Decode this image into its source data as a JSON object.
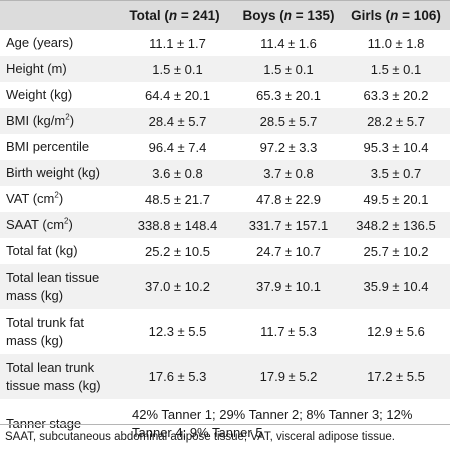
{
  "header": {
    "col0": "",
    "total_label": "Total (",
    "n": "n",
    "total_count": " = 241)",
    "boys_label": "Boys (",
    "boys_count": " = 135)",
    "girls_label": "Girls (",
    "girls_count": " = 106)"
  },
  "rows": [
    {
      "label": "Age (years)",
      "total": "11.1 ± 1.7",
      "boys": "11.4 ± 1.6",
      "girls": "11.0 ± 1.8"
    },
    {
      "label": "Height (m)",
      "total": "1.5 ± 0.1",
      "boys": "1.5 ± 0.1",
      "girls": "1.5 ± 0.1"
    },
    {
      "label": "Weight (kg)",
      "total": "64.4 ± 20.1",
      "boys": "65.3 ± 20.1",
      "girls": "63.3 ± 20.2"
    },
    {
      "label_pre": "BMI (kg/m",
      "label_sup": "2",
      "label_post": ")",
      "total": "28.4 ± 5.7",
      "boys": "28.5 ± 5.7",
      "girls": "28.2 ± 5.7"
    },
    {
      "label": "BMI percentile",
      "total": "96.4 ± 7.4",
      "boys": "97.2 ± 3.3",
      "girls": "95.3 ± 10.4"
    },
    {
      "label": "Birth weight (kg)",
      "total": "3.6 ± 0.8",
      "boys": "3.7 ± 0.8",
      "girls": "3.5 ± 0.7"
    },
    {
      "label_pre": "VAT (cm",
      "label_sup": "2",
      "label_post": ")",
      "total": "48.5 ± 21.7",
      "boys": "47.8 ± 22.9",
      "girls": "49.5 ± 20.1"
    },
    {
      "label_pre": "SAAT (cm",
      "label_sup": "2",
      "label_post": ")",
      "total": "338.8 ± 148.4",
      "boys": "331.7 ± 157.1",
      "girls": "348.2 ± 136.5"
    },
    {
      "label": "Total fat (kg)",
      "total": "25.2 ± 10.5",
      "boys": "24.7 ± 10.7",
      "girls": "25.7 ± 10.2"
    },
    {
      "label_l1": "Total lean tissue",
      "label_l2": "mass (kg)",
      "total": "37.0 ± 10.2",
      "boys": "37.9 ± 10.1",
      "girls": "35.9 ± 10.4"
    },
    {
      "label_l1": "Total trunk fat",
      "label_l2": "mass (kg)",
      "total": "12.3 ± 5.5",
      "boys": "11.7 ± 5.3",
      "girls": "12.9 ± 5.6"
    },
    {
      "label_l1": "Total lean trunk",
      "label_l2": "tissue mass (kg)",
      "total": "17.6 ± 5.3",
      "boys": "17.9 ± 5.2",
      "girls": "17.2 ± 5.5"
    },
    {
      "label": "Tanner stage",
      "span_l1": "42% Tanner 1; 29% Tanner 2; 8% Tanner 3; 12%",
      "span_l2": "Tanner 4; 9% Tanner 5"
    }
  ],
  "footnote": "SAAT, subcutaneous abdominal adipose tissue; VAT, visceral adipose tissue."
}
